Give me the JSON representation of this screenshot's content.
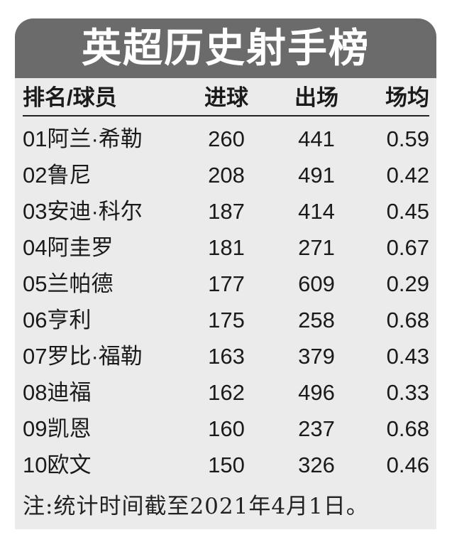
{
  "title": "英超历史射手榜",
  "headers": [
    "排名/球员",
    "进球",
    "出场",
    "场均"
  ],
  "rows": [
    [
      "01阿兰·希勒",
      "260",
      "441",
      "0.59"
    ],
    [
      "02鲁尼",
      "208",
      "491",
      "0.42"
    ],
    [
      "03安迪·科尔",
      "187",
      "414",
      "0.45"
    ],
    [
      "04阿圭罗",
      "181",
      "271",
      "0.67"
    ],
    [
      "05兰帕德",
      "177",
      "609",
      "0.29"
    ],
    [
      "06亨利",
      "175",
      "258",
      "0.68"
    ],
    [
      "07罗比·福勒",
      "163",
      "379",
      "0.43"
    ],
    [
      "08迪福",
      "162",
      "496",
      "0.33"
    ],
    [
      "09凯恩",
      "160",
      "237",
      "0.68"
    ],
    [
      "10欧文",
      "150",
      "326",
      "0.46"
    ]
  ],
  "note": "注:统计时间截至2021年4月1日。",
  "colors": {
    "header_bg": "#6b6b6b",
    "body_bg": "#ebebeb",
    "text": "#1a1a1a"
  }
}
